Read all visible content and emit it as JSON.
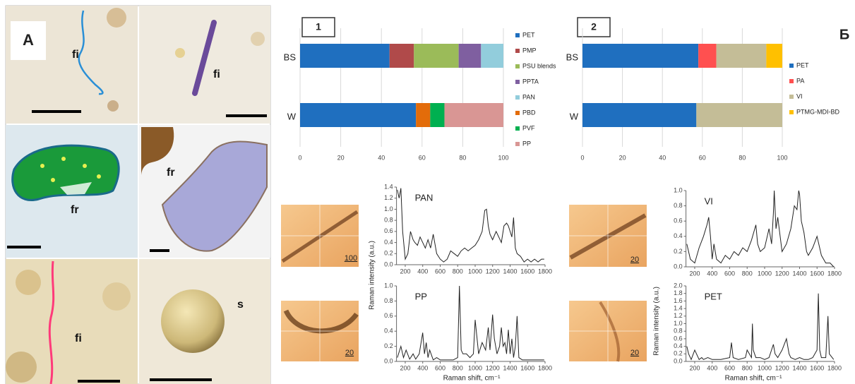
{
  "panel_a": {
    "label": "А",
    "photo_labels": [
      "fi",
      "fi",
      "fr",
      "fr",
      "fi",
      "s"
    ]
  },
  "panel_b": {
    "label": "Б",
    "scale_labels": [
      "100",
      "20",
      "20",
      "20"
    ]
  },
  "chart_data": [
    {
      "type": "stacked-barh",
      "title": "1",
      "categories": [
        "BS",
        "W"
      ],
      "series": [
        {
          "name": "PET",
          "color": "#1f6fbf",
          "values": [
            44,
            57
          ]
        },
        {
          "name": "PMP",
          "color": "#b04a4a",
          "values": [
            12,
            0
          ]
        },
        {
          "name": "PSU blends",
          "color": "#9bbb59",
          "values": [
            22,
            0
          ]
        },
        {
          "name": "PPTA",
          "color": "#7f5fa0",
          "values": [
            11,
            0
          ]
        },
        {
          "name": "PAN",
          "color": "#92cddc",
          "values": [
            11,
            0
          ]
        },
        {
          "name": "PBD",
          "color": "#e36c0a",
          "values": [
            0,
            7
          ]
        },
        {
          "name": "PVF",
          "color": "#00b050",
          "values": [
            0,
            7
          ]
        },
        {
          "name": "PP",
          "color": "#d99694",
          "values": [
            0,
            29
          ]
        }
      ],
      "xlim": [
        0,
        100
      ],
      "xticks": [
        0,
        20,
        40,
        60,
        80,
        100
      ],
      "grid": true
    },
    {
      "type": "stacked-barh",
      "title": "2",
      "categories": [
        "BS",
        "W"
      ],
      "series": [
        {
          "name": "PET",
          "color": "#1f6fbf",
          "values": [
            58,
            57
          ]
        },
        {
          "name": "PA",
          "color": "#ff5050",
          "values": [
            9,
            0
          ]
        },
        {
          "name": "VI",
          "color": "#c4bd97",
          "values": [
            25,
            43
          ]
        },
        {
          "name": "PTMG-MDI-BD",
          "color": "#ffc000",
          "values": [
            8,
            0
          ]
        }
      ],
      "xlim": [
        0,
        100
      ],
      "xticks": [
        0,
        20,
        40,
        60,
        80,
        100
      ],
      "grid": true
    },
    {
      "type": "line",
      "title": "PAN",
      "color": "#222222",
      "x": [
        110,
        130,
        150,
        170,
        200,
        230,
        260,
        290,
        310,
        340,
        370,
        400,
        430,
        460,
        490,
        520,
        560,
        600,
        640,
        680,
        720,
        760,
        800,
        840,
        880,
        920,
        960,
        1000,
        1040,
        1080,
        1110,
        1130,
        1150,
        1170,
        1200,
        1240,
        1270,
        1300,
        1330,
        1360,
        1380,
        1400,
        1420,
        1440,
        1460,
        1480,
        1520,
        1560,
        1600,
        1640,
        1680,
        1720,
        1760,
        1790
      ],
      "values": [
        1.35,
        1.2,
        1.38,
        0.6,
        0.1,
        0.2,
        0.6,
        0.45,
        0.4,
        0.35,
        0.5,
        0.4,
        0.3,
        0.45,
        0.3,
        0.55,
        0.2,
        0.1,
        0.05,
        0.1,
        0.25,
        0.2,
        0.15,
        0.25,
        0.3,
        0.25,
        0.3,
        0.35,
        0.45,
        0.6,
        0.98,
        1.0,
        0.7,
        0.55,
        0.45,
        0.6,
        0.5,
        0.4,
        0.7,
        0.75,
        0.7,
        0.6,
        0.5,
        0.85,
        0.3,
        0.2,
        0.15,
        0.05,
        0.1,
        0.05,
        0.1,
        0.05,
        0.1,
        0.1
      ],
      "xlim": [
        100,
        1800
      ],
      "xticks": [
        200,
        400,
        600,
        800,
        1000,
        1200,
        1400,
        1600,
        1800
      ],
      "ylim": [
        0,
        1.4
      ],
      "yticks": [
        {
          "value": 0,
          "label": "0.0"
        },
        0.2,
        0.4,
        0.6,
        0.8,
        {
          "value": 1,
          "label": "1.0"
        },
        1.2,
        1.4
      ],
      "ylabel": "Raman intensity (a.u.)"
    },
    {
      "type": "line",
      "title": "PP",
      "color": "#222222",
      "x": [
        110,
        150,
        180,
        210,
        250,
        290,
        320,
        360,
        400,
        420,
        440,
        460,
        480,
        520,
        560,
        600,
        650,
        700,
        750,
        800,
        820,
        840,
        860,
        900,
        940,
        980,
        1000,
        1040,
        1080,
        1120,
        1150,
        1170,
        1200,
        1220,
        1250,
        1280,
        1300,
        1320,
        1340,
        1360,
        1380,
        1400,
        1420,
        1440,
        1460,
        1480,
        1500,
        1540,
        1600,
        1700,
        1790
      ],
      "values": [
        0.05,
        0.2,
        0.05,
        0.15,
        0.03,
        0.1,
        0.03,
        0.1,
        0.38,
        0.1,
        0.25,
        0.05,
        0.15,
        0.02,
        0.05,
        0.02,
        0.02,
        0.02,
        0.02,
        0.05,
        1.0,
        0.15,
        0.1,
        0.1,
        0.05,
        0.1,
        0.55,
        0.1,
        0.25,
        0.15,
        0.45,
        0.15,
        0.62,
        0.3,
        0.1,
        0.2,
        0.45,
        0.2,
        0.25,
        0.1,
        0.42,
        0.1,
        0.3,
        0.05,
        0.2,
        0.6,
        0.05,
        0.02,
        0.02,
        0.02,
        0.02
      ],
      "xlim": [
        100,
        1800
      ],
      "xticks": [
        200,
        400,
        600,
        800,
        1000,
        1200,
        1400,
        1600,
        1800
      ],
      "ylim": [
        0,
        1
      ],
      "yticks": [
        {
          "value": 0,
          "label": "0.0"
        },
        0.2,
        0.4,
        0.6,
        0.8,
        {
          "value": 1,
          "label": "1.0"
        }
      ],
      "xlabel": "Raman shift, cm⁻¹"
    },
    {
      "type": "line",
      "title": "VI",
      "color": "#222222",
      "x": [
        110,
        150,
        200,
        250,
        300,
        340,
        360,
        380,
        400,
        420,
        450,
        500,
        550,
        600,
        650,
        700,
        750,
        800,
        850,
        900,
        920,
        950,
        1000,
        1050,
        1080,
        1100,
        1110,
        1130,
        1150,
        1200,
        1250,
        1300,
        1340,
        1370,
        1390,
        1400,
        1420,
        1450,
        1480,
        1500,
        1550,
        1600,
        1620,
        1650,
        1700,
        1750,
        1790
      ],
      "values": [
        0.3,
        0.1,
        0.05,
        0.25,
        0.4,
        0.55,
        0.65,
        0.4,
        0.1,
        0.3,
        0.1,
        0.05,
        0.15,
        0.1,
        0.2,
        0.15,
        0.25,
        0.2,
        0.35,
        0.55,
        0.3,
        0.2,
        0.25,
        0.5,
        0.3,
        0.7,
        1.0,
        0.5,
        0.65,
        0.2,
        0.3,
        0.5,
        0.8,
        0.75,
        1.0,
        0.95,
        0.6,
        0.45,
        0.2,
        0.15,
        0.25,
        0.4,
        0.3,
        0.15,
        0.05,
        0.05,
        0
      ],
      "xlim": [
        100,
        1800
      ],
      "xticks": [
        200,
        400,
        600,
        800,
        1000,
        1200,
        1400,
        1600,
        1800
      ],
      "ylim": [
        0,
        1
      ],
      "yticks": [
        {
          "value": 0,
          "label": "0.0"
        },
        0.2,
        0.4,
        0.6,
        0.8,
        {
          "value": 1,
          "label": "1.0"
        }
      ]
    },
    {
      "type": "line",
      "title": "PET",
      "color": "#222222",
      "x": [
        110,
        130,
        160,
        200,
        250,
        280,
        300,
        350,
        400,
        500,
        600,
        620,
        640,
        700,
        780,
        800,
        850,
        860,
        870,
        900,
        950,
        1000,
        1050,
        1100,
        1120,
        1150,
        1200,
        1250,
        1280,
        1300,
        1350,
        1400,
        1450,
        1500,
        1550,
        1600,
        1615,
        1630,
        1650,
        1700,
        1725,
        1740,
        1790
      ],
      "values": [
        0.4,
        0.2,
        0.05,
        0.3,
        0.05,
        0.1,
        0.05,
        0.1,
        0.05,
        0.05,
        0.1,
        0.5,
        0.1,
        0.05,
        0.1,
        0.3,
        0.1,
        1.0,
        0.3,
        0.1,
        0.1,
        0.05,
        0.1,
        0.45,
        0.2,
        0.1,
        0.3,
        0.6,
        0.2,
        0.1,
        0.05,
        0.1,
        0.05,
        0.05,
        0.1,
        0.3,
        1.8,
        0.3,
        0.1,
        0.1,
        1.2,
        0.2,
        0.05
      ],
      "xlim": [
        100,
        1800
      ],
      "xticks": [
        200,
        400,
        600,
        800,
        1000,
        1200,
        1400,
        1600,
        1800
      ],
      "ylim": [
        0,
        2
      ],
      "yticks": [
        {
          "value": 0,
          "label": "0.0"
        },
        0.2,
        0.4,
        0.6,
        0.8,
        {
          "value": 1,
          "label": "1.0"
        },
        1.2,
        1.4,
        1.6,
        1.8,
        {
          "value": 2,
          "label": "2.0"
        }
      ],
      "ylabel": "Raman intensity (a.u.)",
      "xlabel": "Raman shift, cm⁻¹"
    }
  ]
}
